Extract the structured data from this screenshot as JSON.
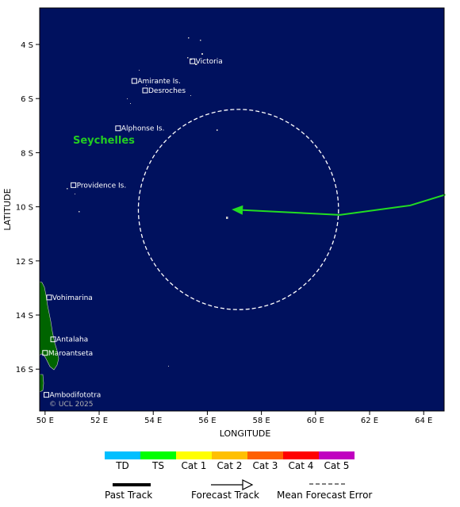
{
  "map": {
    "x_ticks": [
      "50 E",
      "52 E",
      "54 E",
      "56 E",
      "58 E",
      "60 E",
      "62 E",
      "64 E"
    ],
    "y_ticks": [
      "4 S",
      "6 S",
      "8 S",
      "10 S",
      "12 S",
      "14 S",
      "16 S"
    ],
    "xlabel": "LONGITUDE",
    "ylabel": "LATITUDE",
    "region_label": "Seychelles",
    "credit": "© UCL 2025",
    "colors": {
      "ocean": "#00115e",
      "land": "#006400",
      "track": "#22dd22",
      "error_circle": "#ffffff"
    },
    "places": [
      {
        "name": "Victoria",
        "lon": 55.45,
        "lat": -4.62
      },
      {
        "name": "Amirante Is.",
        "lon": 53.3,
        "lat": -5.35
      },
      {
        "name": "Desroches",
        "lon": 53.7,
        "lat": -5.7
      },
      {
        "name": "Alphonse Is.",
        "lon": 52.7,
        "lat": -7.1
      },
      {
        "name": "Providence Is.",
        "lon": 51.05,
        "lat": -9.2
      },
      {
        "name": "Vohimarina",
        "lon": 50.15,
        "lat": -13.35
      },
      {
        "name": "Antalaha",
        "lon": 50.3,
        "lat": -14.9
      },
      {
        "name": "Maroantseta",
        "lon": 50.0,
        "lat": -15.4
      },
      {
        "name": "Ambodifototra",
        "lon": 50.05,
        "lat": -16.95
      }
    ],
    "forecast_track": [
      {
        "lon": 64.8,
        "lat": -9.55
      },
      {
        "lon": 63.5,
        "lat": -9.95
      },
      {
        "lon": 60.9,
        "lat": -10.3
      },
      {
        "lon": 56.9,
        "lat": -10.1
      }
    ],
    "error_circle": {
      "lon": 57.15,
      "lat": -10.1,
      "radius_deg": 3.7
    }
  },
  "legend": {
    "categories": [
      {
        "label": "TD",
        "color": "#00bfff"
      },
      {
        "label": "TS",
        "color": "#00ff00"
      },
      {
        "label": "Cat 1",
        "color": "#ffff00"
      },
      {
        "label": "Cat 2",
        "color": "#ffc000"
      },
      {
        "label": "Cat 3",
        "color": "#ff6000"
      },
      {
        "label": "Cat 4",
        "color": "#ff0000"
      },
      {
        "label": "Cat 5",
        "color": "#c000c0"
      }
    ],
    "past_track": "Past Track",
    "forecast_track": "Forecast Track",
    "mean_error": "Mean Forecast Error"
  }
}
